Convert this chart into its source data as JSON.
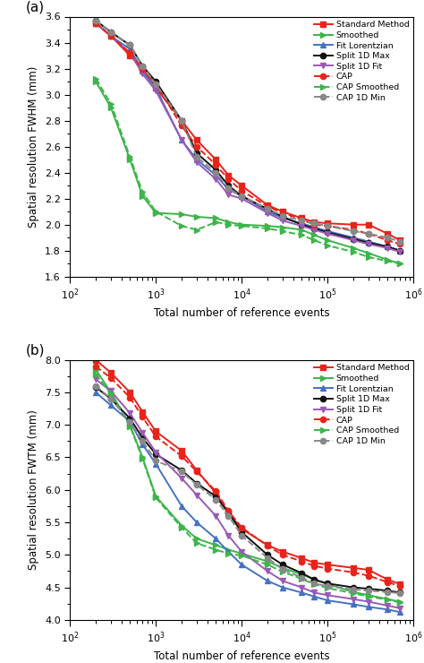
{
  "x_values": [
    200,
    300,
    500,
    700,
    1000,
    2000,
    3000,
    5000,
    7000,
    10000,
    20000,
    30000,
    50000,
    70000,
    100000,
    200000,
    300000,
    500000,
    700000
  ],
  "fwhm": {
    "Standard Method": [
      3.55,
      3.45,
      3.3,
      3.2,
      3.05,
      2.8,
      2.65,
      2.5,
      2.38,
      2.3,
      2.15,
      2.1,
      2.05,
      2.02,
      2.01,
      2.0,
      2.0,
      1.93,
      1.88
    ],
    "Smoothed": [
      3.1,
      2.9,
      2.5,
      2.22,
      2.09,
      2.08,
      2.06,
      2.05,
      2.02,
      2.0,
      1.99,
      1.98,
      1.96,
      1.92,
      1.88,
      1.82,
      1.78,
      1.73,
      1.7
    ],
    "Fit Lorentzian": [
      3.55,
      3.45,
      3.35,
      3.18,
      3.05,
      2.65,
      2.5,
      2.38,
      2.27,
      2.22,
      2.1,
      2.05,
      2.01,
      1.98,
      1.95,
      1.9,
      1.87,
      1.83,
      1.8
    ],
    "Split 1D Max": [
      3.57,
      3.48,
      3.38,
      3.22,
      3.1,
      2.8,
      2.55,
      2.42,
      2.3,
      2.22,
      2.12,
      2.06,
      2.0,
      1.97,
      1.94,
      1.89,
      1.86,
      1.83,
      1.8
    ],
    "Split 1D Fit": [
      3.55,
      3.45,
      3.32,
      3.16,
      3.03,
      2.65,
      2.48,
      2.35,
      2.23,
      2.2,
      2.09,
      2.03,
      1.99,
      1.96,
      1.93,
      1.88,
      1.85,
      1.82,
      1.79
    ],
    "CAP": [
      3.55,
      3.45,
      3.32,
      3.2,
      3.08,
      2.76,
      2.6,
      2.46,
      2.35,
      2.26,
      2.14,
      2.09,
      2.04,
      2.0,
      1.99,
      1.96,
      1.93,
      1.88,
      1.85
    ],
    "CAP Smoothed": [
      3.12,
      2.93,
      2.52,
      2.25,
      2.1,
      1.99,
      1.96,
      2.02,
      2.0,
      1.99,
      1.97,
      1.95,
      1.92,
      1.88,
      1.84,
      1.79,
      1.75,
      1.72,
      1.7
    ],
    "CAP 1D Min": [
      3.57,
      3.48,
      3.38,
      3.22,
      3.08,
      2.8,
      2.52,
      2.4,
      2.28,
      2.22,
      2.12,
      2.07,
      2.03,
      2.01,
      1.99,
      1.95,
      1.93,
      1.9,
      1.87
    ]
  },
  "fwtm": {
    "Standard Method": [
      8.0,
      7.8,
      7.5,
      7.2,
      6.9,
      6.6,
      6.3,
      5.95,
      5.65,
      5.4,
      5.15,
      5.05,
      4.95,
      4.88,
      4.85,
      4.8,
      4.77,
      4.62,
      4.55
    ],
    "Smoothed": [
      7.85,
      7.5,
      7.0,
      6.5,
      5.9,
      5.45,
      5.25,
      5.15,
      5.08,
      5.02,
      4.9,
      4.8,
      4.7,
      4.62,
      4.55,
      4.43,
      4.38,
      4.32,
      4.28
    ],
    "Fit Lorentzian": [
      7.5,
      7.3,
      7.05,
      6.7,
      6.4,
      5.75,
      5.5,
      5.25,
      5.05,
      4.85,
      4.6,
      4.5,
      4.42,
      4.36,
      4.3,
      4.24,
      4.2,
      4.16,
      4.12
    ],
    "Split 1D Max": [
      7.58,
      7.4,
      7.1,
      6.8,
      6.55,
      6.3,
      6.1,
      5.9,
      5.65,
      5.35,
      5.0,
      4.85,
      4.72,
      4.62,
      4.56,
      4.5,
      4.48,
      4.45,
      4.42
    ],
    "Split 1D Fit": [
      7.7,
      7.52,
      7.18,
      6.88,
      6.58,
      6.18,
      5.92,
      5.6,
      5.3,
      5.05,
      4.75,
      4.6,
      4.5,
      4.42,
      4.38,
      4.32,
      4.28,
      4.22,
      4.18
    ],
    "CAP": [
      7.9,
      7.72,
      7.42,
      7.12,
      6.82,
      6.52,
      6.28,
      5.98,
      5.68,
      5.42,
      5.14,
      5.0,
      4.9,
      4.83,
      4.79,
      4.73,
      4.68,
      4.58,
      4.52
    ],
    "CAP Smoothed": [
      7.78,
      7.48,
      6.98,
      6.48,
      5.88,
      5.42,
      5.18,
      5.08,
      5.02,
      4.99,
      4.85,
      4.74,
      4.63,
      4.55,
      4.49,
      4.41,
      4.36,
      4.31,
      4.27
    ],
    "CAP 1D Min": [
      7.6,
      7.4,
      7.05,
      6.75,
      6.45,
      6.28,
      6.08,
      5.85,
      5.6,
      5.3,
      4.95,
      4.78,
      4.65,
      4.56,
      4.52,
      4.47,
      4.45,
      4.43,
      4.41
    ]
  },
  "series_styles": {
    "Standard Method": {
      "color": "#e8231a",
      "marker": "s",
      "linestyle": "-",
      "linewidth": 1.4,
      "markersize": 4.5
    },
    "Smoothed": {
      "color": "#3cb54a",
      "marker": ">",
      "linestyle": "-",
      "linewidth": 1.4,
      "markersize": 4.5
    },
    "Fit Lorentzian": {
      "color": "#4472c4",
      "marker": "^",
      "linestyle": "-",
      "linewidth": 1.4,
      "markersize": 4.5
    },
    "Split 1D Max": {
      "color": "#111111",
      "marker": "o",
      "linestyle": "-",
      "linewidth": 1.4,
      "markersize": 4.5
    },
    "Split 1D Fit": {
      "color": "#9b59b6",
      "marker": "v",
      "linestyle": "-",
      "linewidth": 1.4,
      "markersize": 4.5
    },
    "CAP": {
      "color": "#e8231a",
      "marker": "o",
      "linestyle": "--",
      "linewidth": 1.4,
      "markersize": 4.5
    },
    "CAP Smoothed": {
      "color": "#3cb54a",
      "marker": ">",
      "linestyle": "--",
      "linewidth": 1.4,
      "markersize": 4.5
    },
    "CAP 1D Min": {
      "color": "#888888",
      "marker": "o",
      "linestyle": "--",
      "linewidth": 1.4,
      "markersize": 4.5
    }
  },
  "legend_order": [
    "Standard Method",
    "Smoothed",
    "Fit Lorentzian",
    "Split 1D Max",
    "Split 1D Fit",
    "CAP",
    "CAP Smoothed",
    "CAP 1D Min"
  ],
  "fwhm_ylim": [
    1.6,
    3.6
  ],
  "fwhm_yticks": [
    1.6,
    1.8,
    2.0,
    2.2,
    2.4,
    2.6,
    2.8,
    3.0,
    3.2,
    3.4,
    3.6
  ],
  "fwtm_ylim": [
    4.0,
    8.0
  ],
  "fwtm_yticks": [
    4.0,
    4.5,
    5.0,
    5.5,
    6.0,
    6.5,
    7.0,
    7.5,
    8.0
  ],
  "xlim": [
    100,
    1000000
  ],
  "xlabel": "Total number of reference events",
  "fwhm_ylabel": "Spatial resolution FWHM (mm)",
  "fwtm_ylabel": "Spatial resolution FWTM (mm)"
}
